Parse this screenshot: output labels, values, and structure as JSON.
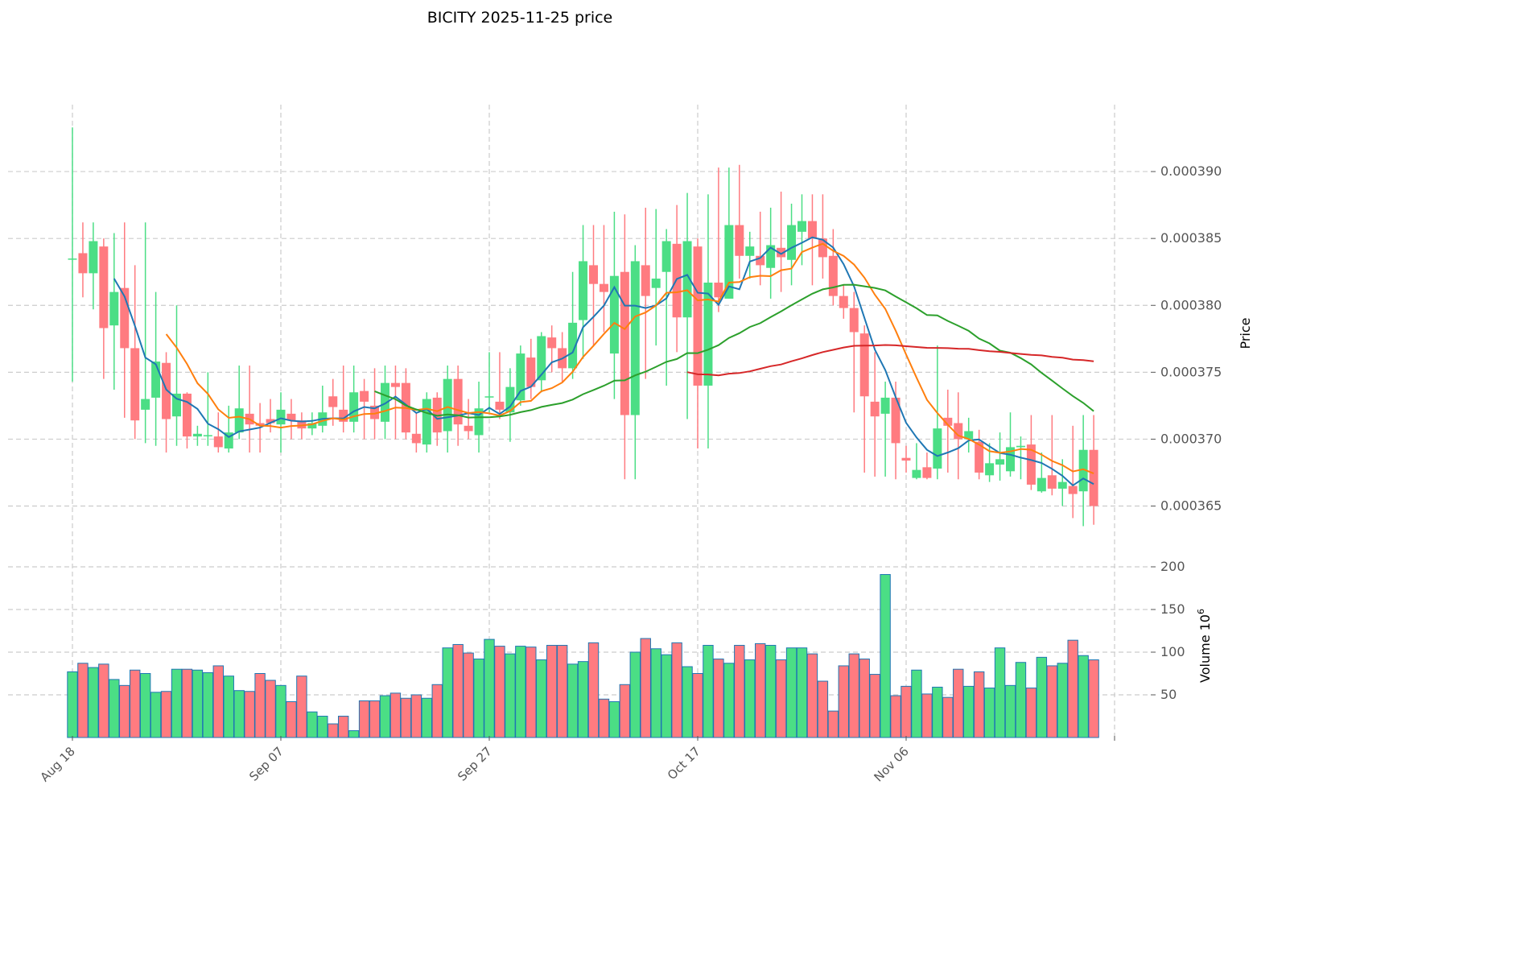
{
  "chart_data": {
    "type": "candlestick",
    "title": "BICITY  2025-11-25  price",
    "ylabel": "Price",
    "volume_label": "Volume  10",
    "volume_exp": "6",
    "start_date": "2025-08-18",
    "interval": "1 day",
    "xticks": [
      "Aug 18",
      "Sep 07",
      "Sep 27",
      "Oct 17",
      "Nov 06"
    ],
    "yticks": [
      "0.000365",
      "0.000370",
      "0.000375",
      "0.000380",
      "0.000385",
      "0.000390"
    ],
    "ylim": [
      0.0003613,
      0.000395
    ],
    "vol_ticks": [
      "50",
      "100",
      "150",
      "200"
    ],
    "vol_ylim": [
      0,
      200
    ],
    "moving_averages": [
      {
        "window": 5,
        "color": "#1f77b4"
      },
      {
        "window": 10,
        "color": "#ff7f0e"
      },
      {
        "window": 30,
        "color": "#2ca02c"
      },
      {
        "window": 60,
        "color": "#d62728"
      }
    ],
    "colors": {
      "up": "#4bde85",
      "down": "#ff7b80",
      "grid": "#cccccc"
    },
    "columns": [
      "open",
      "high",
      "low",
      "close",
      "volume_millions"
    ],
    "ohlcv": [
      [
        383.5,
        393.3,
        374.3,
        383.5,
        77
      ],
      [
        383.9,
        386.2,
        380.6,
        382.4,
        87
      ],
      [
        382.4,
        386.2,
        379.7,
        384.8,
        82
      ],
      [
        384.4,
        385,
        374.5,
        378.3,
        86
      ],
      [
        378.5,
        385.4,
        373.7,
        381.0,
        68
      ],
      [
        381.3,
        386.2,
        371.6,
        376.8,
        61
      ],
      [
        376.8,
        383,
        370,
        371.4,
        79
      ],
      [
        372.2,
        386.2,
        369.7,
        373.0,
        75
      ],
      [
        373.1,
        381,
        369.5,
        375.8,
        53
      ],
      [
        375.7,
        376.5,
        369,
        371.5,
        54
      ],
      [
        371.7,
        380,
        369.5,
        373.4,
        80
      ],
      [
        373.4,
        373.5,
        369.3,
        370.2,
        80
      ],
      [
        370.2,
        371,
        369.5,
        370.4,
        79
      ],
      [
        370.3,
        375,
        369.5,
        370.3,
        76
      ],
      [
        370.2,
        372,
        369,
        369.4,
        84
      ],
      [
        369.3,
        372.5,
        369,
        370.5,
        72
      ],
      [
        370.5,
        375.5,
        370,
        372.3,
        55
      ],
      [
        371.9,
        375.5,
        369,
        371.1,
        54
      ],
      [
        371.2,
        372.7,
        369,
        371.0,
        75
      ],
      [
        371.5,
        373,
        370.5,
        371.2,
        67
      ],
      [
        371.1,
        373.5,
        369,
        372.2,
        61
      ],
      [
        371.9,
        373,
        370,
        371.4,
        42
      ],
      [
        371.4,
        372,
        370,
        370.8,
        72
      ],
      [
        370.8,
        372,
        370.3,
        371.2,
        30
      ],
      [
        371,
        374,
        370.5,
        372,
        25
      ],
      [
        373.2,
        374.5,
        371,
        372.4,
        16
      ],
      [
        372.2,
        375.5,
        370.5,
        371.3,
        25
      ],
      [
        371.3,
        375.5,
        370.5,
        373.5,
        8
      ],
      [
        373.6,
        374.5,
        370,
        372.8,
        43
      ],
      [
        372.5,
        375.3,
        370,
        371.5,
        43
      ],
      [
        371.3,
        375.5,
        370,
        374.2,
        49
      ],
      [
        374.2,
        375.5,
        370,
        373.9,
        52
      ],
      [
        374.2,
        375.3,
        370,
        370.5,
        46
      ],
      [
        370.4,
        372,
        369,
        369.7,
        50
      ],
      [
        369.6,
        373.5,
        369,
        373,
        46
      ],
      [
        373.1,
        373.5,
        369.5,
        370.5,
        62
      ],
      [
        370.6,
        375.5,
        369,
        374.5,
        105
      ],
      [
        374.5,
        375.5,
        369.5,
        371.1,
        109
      ],
      [
        371,
        373,
        370,
        370.6,
        99
      ],
      [
        370.3,
        374.3,
        369,
        372.3,
        92
      ],
      [
        373.2,
        376.5,
        372,
        373.2,
        115
      ],
      [
        372.8,
        376.5,
        371.5,
        372.2,
        107
      ],
      [
        372,
        375.3,
        369.8,
        373.9,
        98
      ],
      [
        372.9,
        377,
        372.5,
        376.4,
        107
      ],
      [
        376.1,
        377.5,
        373,
        373.9,
        106
      ],
      [
        374.4,
        378,
        373.5,
        377.7,
        91
      ],
      [
        377.6,
        378.5,
        375,
        376.8,
        108
      ],
      [
        376.8,
        378,
        374.3,
        375.3,
        108
      ],
      [
        375.3,
        382.5,
        374.5,
        378.7,
        86
      ],
      [
        378.9,
        386,
        376,
        383.3,
        89
      ],
      [
        383,
        386,
        377,
        381.6,
        111
      ],
      [
        381.6,
        386,
        378,
        381,
        45
      ],
      [
        376.4,
        387,
        373,
        382.2,
        42
      ],
      [
        382.5,
        386.8,
        367,
        371.8,
        62
      ],
      [
        371.8,
        384.5,
        367,
        383.3,
        100
      ],
      [
        383,
        387.3,
        374.5,
        380.7,
        116
      ],
      [
        381.3,
        387.2,
        377,
        382,
        104
      ],
      [
        382.5,
        385.7,
        374,
        384.8,
        97
      ],
      [
        384.6,
        387.5,
        376.5,
        379.1,
        111
      ],
      [
        379.1,
        388.4,
        371.5,
        384.8,
        83
      ],
      [
        384.4,
        385,
        369.3,
        374,
        75
      ],
      [
        374,
        388.3,
        369.3,
        381.7,
        108
      ],
      [
        381.7,
        390.3,
        379.5,
        380.6,
        92
      ],
      [
        380.5,
        390.3,
        380.5,
        386,
        87
      ],
      [
        386,
        390.5,
        382,
        383.7,
        108
      ],
      [
        383.7,
        385.5,
        382,
        384.4,
        91
      ],
      [
        383.7,
        387,
        381.5,
        383,
        110
      ],
      [
        382.8,
        387.3,
        380.5,
        384.5,
        108
      ],
      [
        384.3,
        388.5,
        381,
        383.6,
        91
      ],
      [
        383.4,
        387.6,
        381.5,
        386,
        105
      ],
      [
        385.5,
        388.3,
        383,
        386.3,
        105
      ],
      [
        386.3,
        388.3,
        381.5,
        385,
        98
      ],
      [
        385,
        388.3,
        382,
        383.6,
        66
      ],
      [
        383.7,
        385.7,
        380,
        380.7,
        31
      ],
      [
        380.7,
        381.5,
        379,
        379.8,
        84
      ],
      [
        379.8,
        381,
        372,
        378,
        98
      ],
      [
        377.9,
        378.5,
        367.5,
        373.2,
        92
      ],
      [
        372.8,
        376.5,
        367.2,
        371.7,
        74
      ],
      [
        371.9,
        374.3,
        367.2,
        373.1,
        191
      ],
      [
        373.1,
        374.3,
        367,
        369.7,
        49
      ],
      [
        368.6,
        369.5,
        367.5,
        368.4,
        60
      ],
      [
        367.1,
        369.7,
        367,
        367.7,
        79
      ],
      [
        367.9,
        369,
        367,
        367.1,
        51
      ],
      [
        367.8,
        377,
        367,
        370.8,
        59
      ],
      [
        371.6,
        373.7,
        367.5,
        371,
        47
      ],
      [
        371.2,
        373.5,
        367,
        370,
        80
      ],
      [
        370,
        371.6,
        369,
        370.6,
        60
      ],
      [
        369.8,
        370.7,
        367,
        367.5,
        77
      ],
      [
        367.3,
        369.7,
        366.8,
        368.2,
        58
      ],
      [
        368.1,
        370.5,
        366.9,
        368.5,
        105
      ],
      [
        367.6,
        372,
        367.2,
        369.4,
        61
      ],
      [
        369.4,
        370.2,
        367,
        369.5,
        88
      ],
      [
        369.6,
        371.8,
        366.2,
        366.6,
        58
      ],
      [
        366.1,
        369,
        366,
        367.1,
        94
      ],
      [
        367.3,
        371.8,
        365.8,
        366.3,
        84
      ],
      [
        366.3,
        368.5,
        365,
        366.8,
        87
      ],
      [
        366.5,
        371,
        364.1,
        365.9,
        114
      ],
      [
        366.1,
        371.8,
        363.5,
        369.2,
        96
      ],
      [
        369.2,
        371.8,
        363.6,
        365,
        91
      ]
    ],
    "price_multiplier": 1e-06
  }
}
